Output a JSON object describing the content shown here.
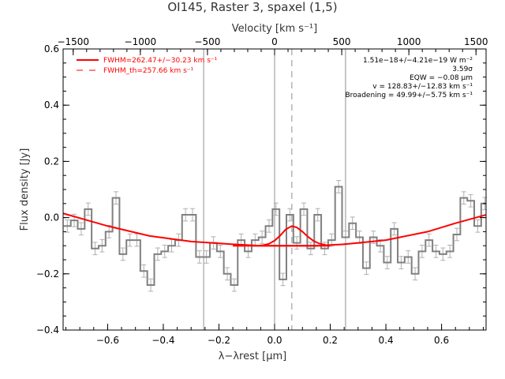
{
  "chart_data": {
    "type": "line",
    "title": "OI145, Raster 3, spaxel (1,5)",
    "xlabel": "λ−λrest [μm]",
    "ylabel": "Flux density [Jy]",
    "top_axis_label": "Velocity [km s⁻¹]",
    "xlim": [
      -0.76,
      0.76
    ],
    "ylim": [
      -0.4,
      0.6
    ],
    "top_xlim": [
      -1575,
      1575
    ],
    "x_ticks": [
      -0.6,
      -0.4,
      -0.2,
      0.0,
      0.2,
      0.4,
      0.6
    ],
    "x_tick_labels": [
      "−0.6",
      "−0.4",
      "−0.2",
      "0.0",
      "0.2",
      "0.4",
      "0.6"
    ],
    "y_ticks": [
      -0.4,
      -0.2,
      0.0,
      0.2,
      0.4,
      0.6
    ],
    "y_tick_labels": [
      "−0.4",
      "−0.2",
      "0.0",
      "0.2",
      "0.4",
      "0.6"
    ],
    "top_ticks": [
      -1500,
      -1000,
      -500,
      0,
      500,
      1000,
      1500
    ],
    "top_tick_labels": [
      "−1500",
      "−1000",
      "−500",
      "0",
      "500",
      "1000",
      "1500"
    ],
    "legend": [
      {
        "label": "FWHM=262.47+/−30.23 km s⁻¹",
        "style": "solid",
        "color": "#ff0000"
      },
      {
        "label": "FWHM_th=257.66 km s⁻¹",
        "style": "dashed",
        "color": "#ff0000"
      }
    ],
    "annotations": [
      "1.51e−18+/−4.21e−19 W m⁻²",
      "3.59σ",
      "EQW = −0.08 μm",
      "v = 128.83+/−12.83 km s⁻¹",
      "Broadening = 49.99+/−5.75 km s⁻¹"
    ],
    "vertical_lines": [
      {
        "x": -0.255,
        "style": "solid",
        "color": "#909090"
      },
      {
        "x": 0.0,
        "style": "solid",
        "color": "#909090"
      },
      {
        "x": 0.255,
        "style": "solid",
        "color": "#909090"
      },
      {
        "x": 0.062,
        "style": "dashed",
        "color": "#909090"
      }
    ],
    "series": [
      {
        "name": "Spectrum",
        "kind": "step",
        "color": "#808080",
        "x": [
          -0.745,
          -0.72,
          -0.695,
          -0.67,
          -0.645,
          -0.62,
          -0.595,
          -0.57,
          -0.545,
          -0.52,
          -0.495,
          -0.47,
          -0.445,
          -0.42,
          -0.395,
          -0.37,
          -0.345,
          -0.32,
          -0.295,
          -0.27,
          -0.245,
          -0.22,
          -0.195,
          -0.17,
          -0.145,
          -0.12,
          -0.095,
          -0.07,
          -0.045,
          -0.02,
          0.005,
          0.03,
          0.055,
          0.08,
          0.105,
          0.13,
          0.155,
          0.18,
          0.205,
          0.23,
          0.255,
          0.28,
          0.305,
          0.33,
          0.355,
          0.38,
          0.405,
          0.43,
          0.455,
          0.48,
          0.505,
          0.53,
          0.555,
          0.58,
          0.605,
          0.63,
          0.655,
          0.68,
          0.705,
          0.73,
          0.755
        ],
        "values": [
          -0.03,
          -0.01,
          -0.04,
          0.03,
          -0.11,
          -0.1,
          -0.05,
          0.07,
          -0.13,
          -0.08,
          -0.08,
          -0.19,
          -0.24,
          -0.13,
          -0.12,
          -0.1,
          -0.08,
          0.01,
          0.01,
          -0.14,
          -0.14,
          -0.09,
          -0.12,
          -0.2,
          -0.24,
          -0.08,
          -0.12,
          -0.08,
          -0.07,
          -0.03,
          0.03,
          -0.22,
          0.01,
          -0.09,
          0.03,
          -0.11,
          0.01,
          -0.11,
          -0.08,
          0.11,
          -0.07,
          -0.02,
          -0.07,
          -0.18,
          -0.07,
          -0.1,
          -0.16,
          -0.04,
          -0.16,
          -0.14,
          -0.2,
          -0.12,
          -0.08,
          -0.12,
          -0.13,
          -0.12,
          -0.06,
          0.07,
          0.06,
          -0.03,
          0.05
        ],
        "errors": [
          0.022,
          0.022,
          0.022,
          0.022,
          0.022,
          0.022,
          0.022,
          0.022,
          0.022,
          0.022,
          0.022,
          0.022,
          0.022,
          0.022,
          0.022,
          0.022,
          0.022,
          0.022,
          0.022,
          0.022,
          0.022,
          0.022,
          0.022,
          0.022,
          0.022,
          0.022,
          0.022,
          0.022,
          0.022,
          0.022,
          0.022,
          0.022,
          0.022,
          0.022,
          0.022,
          0.022,
          0.022,
          0.022,
          0.022,
          0.022,
          0.022,
          0.022,
          0.022,
          0.022,
          0.022,
          0.022,
          0.022,
          0.022,
          0.022,
          0.022,
          0.022,
          0.022,
          0.022,
          0.022,
          0.022,
          0.022,
          0.022,
          0.022,
          0.022,
          0.022,
          0.022
        ]
      },
      {
        "name": "Baseline",
        "kind": "line",
        "color": "#ff0000",
        "x": [
          -0.76,
          -0.6,
          -0.45,
          -0.3,
          -0.15,
          -0.05,
          0.05,
          0.15,
          0.25,
          0.4,
          0.55,
          0.65,
          0.76
        ],
        "values": [
          0.015,
          -0.03,
          -0.065,
          -0.085,
          -0.095,
          -0.1,
          -0.1,
          -0.1,
          -0.095,
          -0.08,
          -0.05,
          -0.02,
          0.01
        ]
      },
      {
        "name": "Gaussian fit",
        "kind": "line",
        "color": "#ff0000",
        "x": [
          -0.06,
          -0.04,
          -0.02,
          0.0,
          0.02,
          0.04,
          0.062,
          0.08,
          0.1,
          0.12,
          0.14,
          0.16,
          0.18,
          0.2
        ],
        "values": [
          -0.1,
          -0.098,
          -0.093,
          -0.082,
          -0.064,
          -0.042,
          -0.03,
          -0.035,
          -0.05,
          -0.068,
          -0.083,
          -0.092,
          -0.097,
          -0.1
        ]
      },
      {
        "name": "Flat continuum",
        "kind": "line",
        "color": "#ff0000",
        "x": [
          -0.15,
          0.2
        ],
        "values": [
          -0.1,
          -0.1
        ]
      }
    ]
  }
}
